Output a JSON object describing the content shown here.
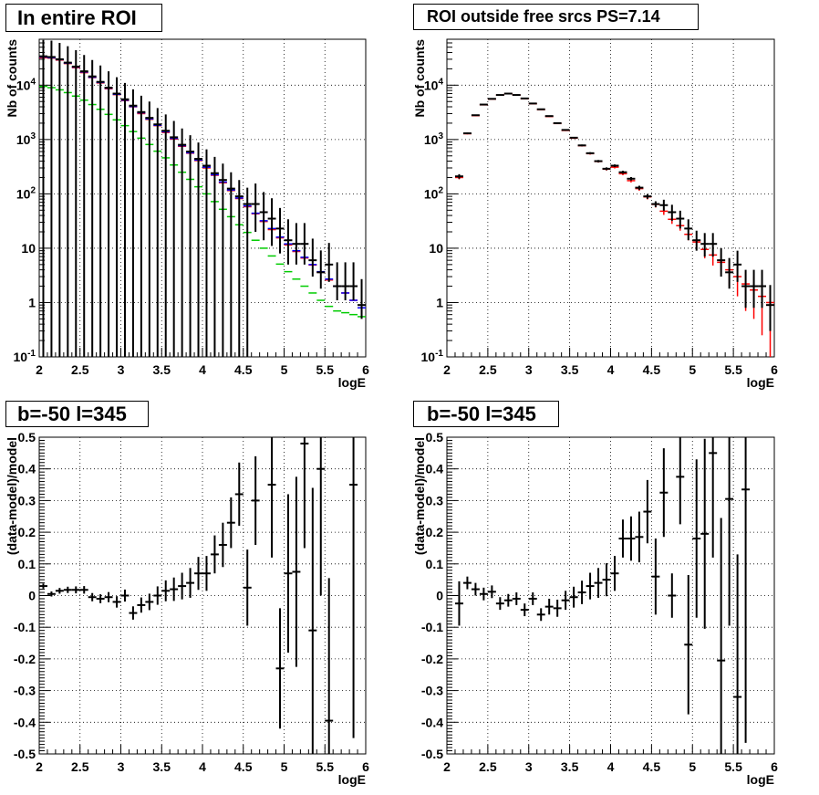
{
  "panels": [
    {
      "title": "In entire ROI"
    },
    {
      "title": "ROI outside free srcs PS=7.14"
    },
    {
      "title": "b=-50 l=345"
    },
    {
      "title": "b=-50 l=345"
    }
  ],
  "colors": {
    "data": "#000000",
    "model_red": "#ff0000",
    "model_blue": "#0000ff",
    "model_green": "#00cc00",
    "grid": "#000000"
  },
  "chart_data": [
    {
      "type": "scatter",
      "title": "In entire ROI",
      "xlabel": "logE",
      "ylabel": "Nb of counts",
      "xlim": [
        2,
        6
      ],
      "ylim": [
        0.1,
        70000
      ],
      "yscale": "log",
      "grid": true,
      "x_ticks": [
        "2",
        "2.5",
        "3",
        "3.5",
        "4",
        "4.5",
        "5",
        "5.5",
        "6"
      ],
      "y_ticks": [
        "10^-1",
        "1",
        "10",
        "10^2",
        "10^3",
        "10^4"
      ],
      "x": [
        2.05,
        2.15,
        2.25,
        2.35,
        2.45,
        2.55,
        2.65,
        2.75,
        2.85,
        2.95,
        3.05,
        3.15,
        3.25,
        3.35,
        3.45,
        3.55,
        3.65,
        3.75,
        3.85,
        3.95,
        4.05,
        4.15,
        4.25,
        4.35,
        4.45,
        4.55,
        4.65,
        4.75,
        4.85,
        4.95,
        5.05,
        5.15,
        5.25,
        5.35,
        5.45,
        5.55,
        5.65,
        5.75,
        5.85,
        5.95
      ],
      "series": [
        {
          "name": "",
          "color": "#000000",
          "values": [
            34000,
            33000,
            30000,
            26000,
            22000,
            18000,
            14500,
            11500,
            9000,
            7000,
            5500,
            4200,
            3200,
            2500,
            1900,
            1450,
            1100,
            800,
            600,
            440,
            330,
            240,
            180,
            125,
            90,
            65,
            65,
            46,
            35,
            23,
            14,
            12,
            12,
            6,
            3.6,
            5,
            2,
            2,
            2,
            0.9
          ],
          "err_lo": [
            34000,
            33000,
            30000,
            26000,
            22000,
            18000,
            14500,
            11500,
            9000,
            7000,
            5500,
            4200,
            3200,
            2500,
            1900,
            1450,
            1100,
            800,
            600,
            440,
            330,
            240,
            180,
            125,
            90,
            65,
            45,
            32,
            24,
            15,
            9,
            7,
            7,
            3,
            1.8,
            2.6,
            0.9,
            0.9,
            0.9,
            0.4
          ],
          "err_hi": [
            34000,
            33000,
            30000,
            26000,
            22000,
            18000,
            14500,
            11500,
            9000,
            7000,
            5500,
            4200,
            3200,
            2500,
            1900,
            1450,
            1100,
            800,
            600,
            440,
            330,
            240,
            180,
            125,
            90,
            65,
            90,
            62,
            48,
            32,
            20,
            17,
            17,
            9,
            5.5,
            7.5,
            3.5,
            3.5,
            3.5,
            1.8
          ]
        },
        {
          "name": "",
          "color": "#0000ff",
          "values": [
            33000,
            32000,
            29500,
            25500,
            21500,
            17500,
            14000,
            11200,
            8800,
            6800,
            5300,
            4050,
            3100,
            2400,
            1830,
            1390,
            1050,
            770,
            570,
            420,
            310,
            225,
            165,
            118,
            84,
            60,
            44,
            32,
            23,
            16,
            12,
            9,
            6.8,
            5,
            3.7,
            2.7,
            2,
            1.5,
            1.1,
            0.8
          ]
        },
        {
          "name": "",
          "color": "#ff0000",
          "values": [
            32000,
            31500,
            29000,
            25000,
            21000,
            17000,
            13800,
            11000,
            8600,
            6700,
            5200,
            4000,
            3000,
            2350,
            1800,
            1350,
            1020,
            750,
            560,
            410,
            300,
            220,
            160,
            115,
            82,
            58,
            43,
            31,
            22,
            15.5,
            11.5,
            8.7,
            6.6,
            4.9,
            3.6,
            2.6,
            2,
            1.5,
            1.1,
            0.8
          ]
        },
        {
          "name": "",
          "color": "#00cc00",
          "values": [
            9500,
            9000,
            8200,
            7300,
            6300,
            5300,
            4400,
            3600,
            2900,
            2300,
            1800,
            1400,
            1060,
            810,
            610,
            460,
            340,
            250,
            185,
            135,
            100,
            72,
            52,
            38,
            27,
            19.5,
            14,
            10,
            7.2,
            5.1,
            3.7,
            2.7,
            2,
            1.5,
            1.1,
            0.85,
            0.7,
            0.65,
            0.6,
            0.55
          ]
        }
      ]
    },
    {
      "type": "scatter",
      "title": "ROI outside free srcs PS=7.14",
      "xlabel": "logE",
      "ylabel": "Nb of counts",
      "xlim": [
        2,
        6
      ],
      "ylim": [
        0.1,
        70000
      ],
      "yscale": "log",
      "grid": true,
      "x_ticks": [
        "2",
        "2.5",
        "3",
        "3.5",
        "4",
        "4.5",
        "5",
        "5.5",
        "6"
      ],
      "y_ticks": [
        "10^-1",
        "1",
        "10",
        "10^2",
        "10^3",
        "10^4"
      ],
      "x": [
        2.15,
        2.25,
        2.35,
        2.45,
        2.55,
        2.65,
        2.75,
        2.85,
        2.95,
        3.05,
        3.15,
        3.25,
        3.35,
        3.45,
        3.55,
        3.65,
        3.75,
        3.85,
        3.95,
        4.05,
        4.15,
        4.25,
        4.35,
        4.45,
        4.55,
        4.65,
        4.75,
        4.85,
        4.95,
        5.05,
        5.15,
        5.25,
        5.35,
        5.45,
        5.55,
        5.65,
        5.75,
        5.85,
        5.95
      ],
      "series": [
        {
          "name": "",
          "color": "#000000",
          "values": [
            210,
            1300,
            2800,
            4400,
            5600,
            6600,
            7000,
            6600,
            5700,
            4600,
            3600,
            2700,
            2000,
            1500,
            1080,
            780,
            560,
            400,
            290,
            330,
            250,
            190,
            130,
            90,
            65,
            62,
            46,
            35,
            23,
            14,
            12,
            12,
            6,
            3.6,
            5,
            2,
            2,
            2,
            0.9
          ],
          "err_lo": [
            20,
            40,
            60,
            70,
            80,
            90,
            90,
            90,
            80,
            70,
            60,
            55,
            45,
            40,
            33,
            28,
            24,
            20,
            17,
            18,
            16,
            14,
            11,
            9,
            8,
            13,
            14,
            12,
            9,
            5,
            5,
            5,
            3,
            1.8,
            2.6,
            1.2,
            1.2,
            1.2,
            0.6
          ],
          "err_hi": [
            20,
            40,
            60,
            70,
            80,
            90,
            90,
            90,
            80,
            70,
            60,
            55,
            45,
            40,
            33,
            28,
            24,
            20,
            17,
            18,
            16,
            14,
            11,
            9,
            8,
            16,
            17,
            14,
            11,
            7,
            7,
            7,
            4,
            3,
            4,
            2,
            2,
            2,
            1.2
          ]
        },
        {
          "name": "",
          "color": "#ff0000",
          "values": [
            200,
            1280,
            2750,
            4350,
            5550,
            6550,
            6950,
            6550,
            5650,
            4550,
            3550,
            2650,
            1970,
            1470,
            1060,
            770,
            550,
            395,
            285,
            310,
            235,
            175,
            125,
            88,
            64,
            48,
            34,
            26,
            18,
            13,
            9.5,
            7.5,
            5.5,
            4,
            3,
            2.2,
            1.7,
            1.3,
            1
          ],
          "err_lo": [
            15,
            35,
            55,
            65,
            75,
            85,
            85,
            85,
            75,
            65,
            60,
            50,
            44,
            38,
            32,
            27,
            23,
            19,
            16,
            17,
            15,
            13,
            11,
            9,
            8,
            7,
            6,
            5,
            4,
            3.5,
            3,
            2.7,
            2.3,
            2,
            1.7,
            1.5,
            1.2,
            1.05,
            0.9
          ],
          "err_hi": [
            15,
            35,
            55,
            65,
            75,
            85,
            85,
            85,
            75,
            65,
            60,
            50,
            44,
            38,
            32,
            27,
            23,
            19,
            16,
            17,
            15,
            13,
            11,
            9,
            8,
            7,
            6,
            5,
            4,
            3.5,
            3,
            2.7,
            2.3,
            2,
            1.7,
            1.5,
            1.3,
            1.1,
            1
          ]
        }
      ]
    },
    {
      "type": "scatter",
      "title": "b=-50 l=345",
      "xlabel": "logE",
      "ylabel": "(data-model)/model",
      "xlim": [
        2,
        6
      ],
      "ylim": [
        -0.5,
        0.5
      ],
      "yscale": "linear",
      "grid": true,
      "x_ticks": [
        "2",
        "2.5",
        "3",
        "3.5",
        "4",
        "4.5",
        "5",
        "5.5",
        "6"
      ],
      "y_ticks": [
        "-0.5",
        "-0.4",
        "-0.3",
        "-0.2",
        "-0.1",
        "0",
        "0.1",
        "0.2",
        "0.3",
        "0.4",
        "0.5"
      ],
      "series": [
        {
          "name": "",
          "color": "#000000",
          "x": [
            2.05,
            2.15,
            2.25,
            2.35,
            2.45,
            2.55,
            2.65,
            2.75,
            2.85,
            2.95,
            3.05,
            3.15,
            3.25,
            3.35,
            3.45,
            3.55,
            3.65,
            3.75,
            3.85,
            3.95,
            4.05,
            4.15,
            4.25,
            4.35,
            4.45,
            4.55,
            4.65,
            4.85,
            4.95,
            5.05,
            5.15,
            5.25,
            5.35,
            5.45,
            5.55,
            5.85
          ],
          "values": [
            0.03,
            0.005,
            0.015,
            0.018,
            0.018,
            0.018,
            -0.005,
            -0.01,
            -0.005,
            -0.02,
            0,
            -0.055,
            -0.03,
            -0.02,
            0,
            0.015,
            0.02,
            0.03,
            0.04,
            0.07,
            0.07,
            0.13,
            0.16,
            0.23,
            0.32,
            0.025,
            0.3,
            0.35,
            -0.23,
            0.07,
            0.075,
            0.48,
            -0.11,
            0.4,
            -0.395,
            0.35
          ],
          "err": [
            0.008,
            0.008,
            0.009,
            0.01,
            0.011,
            0.012,
            0.013,
            0.014,
            0.016,
            0.018,
            0.019,
            0.021,
            0.024,
            0.026,
            0.029,
            0.033,
            0.037,
            0.042,
            0.047,
            0.052,
            0.055,
            0.06,
            0.07,
            0.08,
            0.1,
            0.12,
            0.14,
            0.23,
            0.19,
            0.25,
            0.3,
            0.33,
            0.45,
            0.4,
            0.45,
            0.8
          ]
        }
      ]
    },
    {
      "type": "scatter",
      "title": "b=-50 l=345",
      "xlabel": "logE",
      "ylabel": "(data-model)/model",
      "xlim": [
        2,
        6
      ],
      "ylim": [
        -0.5,
        0.5
      ],
      "yscale": "linear",
      "grid": true,
      "x_ticks": [
        "2",
        "2.5",
        "3",
        "3.5",
        "4",
        "4.5",
        "5",
        "5.5",
        "6"
      ],
      "y_ticks": [
        "-0.5",
        "-0.4",
        "-0.3",
        "-0.2",
        "-0.1",
        "0",
        "0.1",
        "0.2",
        "0.3",
        "0.4",
        "0.5"
      ],
      "series": [
        {
          "name": "",
          "color": "#000000",
          "x": [
            2.15,
            2.25,
            2.35,
            2.45,
            2.55,
            2.65,
            2.75,
            2.85,
            2.95,
            3.05,
            3.15,
            3.25,
            3.35,
            3.45,
            3.55,
            3.65,
            3.75,
            3.85,
            3.95,
            4.05,
            4.15,
            4.25,
            4.35,
            4.45,
            4.55,
            4.65,
            4.75,
            4.85,
            4.95,
            5.05,
            5.15,
            5.25,
            5.35,
            5.45,
            5.55,
            5.65
          ],
          "values": [
            -0.025,
            0.04,
            0.02,
            0.005,
            0.012,
            -0.025,
            -0.015,
            -0.01,
            -0.045,
            -0.01,
            -0.06,
            -0.035,
            -0.04,
            -0.015,
            -0.005,
            0.01,
            0.03,
            0.04,
            0.05,
            0.07,
            0.18,
            0.18,
            0.185,
            0.265,
            0.06,
            0.325,
            0.0,
            0.375,
            -0.155,
            0.18,
            0.195,
            0.45,
            -0.205,
            0.305,
            -0.32,
            0.335
          ],
          "err": [
            0.07,
            0.02,
            0.02,
            0.02,
            0.02,
            0.02,
            0.02,
            0.02,
            0.02,
            0.02,
            0.02,
            0.025,
            0.027,
            0.03,
            0.033,
            0.037,
            0.042,
            0.047,
            0.052,
            0.055,
            0.06,
            0.07,
            0.08,
            0.1,
            0.12,
            0.14,
            0.07,
            0.15,
            0.22,
            0.25,
            0.3,
            0.33,
            0.45,
            0.4,
            0.45,
            0.8
          ]
        }
      ]
    }
  ]
}
